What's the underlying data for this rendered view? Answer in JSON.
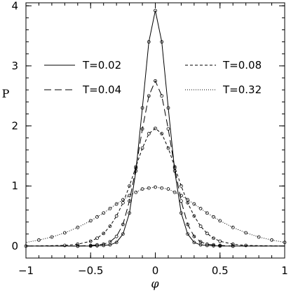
{
  "chart_data": {
    "type": "line",
    "title": "",
    "xlabel": "φ",
    "ylabel": "P",
    "xlim": [
      -1,
      1
    ],
    "ylim": [
      -0.2,
      4.05
    ],
    "x_ticks": [
      -1,
      -0.5,
      0,
      0.5,
      1
    ],
    "x_tick_labels": [
      "−1",
      "−0.5",
      "0",
      "0.5",
      "1"
    ],
    "y_ticks": [
      0,
      1,
      2,
      3,
      4
    ],
    "y_tick_labels": [
      "0",
      "1",
      "2",
      "3",
      "4"
    ],
    "grid": false,
    "legend_position": "inside, upper area, two columns",
    "series": [
      {
        "name": "T=0.02",
        "style": "solid",
        "x": [
          -0.6,
          -0.5,
          -0.4,
          -0.35,
          -0.3,
          -0.25,
          -0.2,
          -0.15,
          -0.1,
          -0.05,
          0,
          0.05,
          0.1,
          0.15,
          0.2,
          0.25,
          0.3,
          0.35,
          0.4,
          0.5,
          0.6
        ],
        "y": [
          0,
          0,
          0.01,
          0.02,
          0.06,
          0.2,
          0.55,
          1.25,
          2.3,
          3.4,
          3.92,
          3.4,
          2.3,
          1.25,
          0.55,
          0.2,
          0.06,
          0.02,
          0.01,
          0,
          0
        ]
      },
      {
        "name": "T=0.04",
        "style": "long-dash",
        "x": [
          -0.6,
          -0.5,
          -0.4,
          -0.35,
          -0.3,
          -0.25,
          -0.2,
          -0.15,
          -0.1,
          -0.05,
          0,
          0.05,
          0.1,
          0.15,
          0.2,
          0.25,
          0.3,
          0.35,
          0.4,
          0.5,
          0.6
        ],
        "y": [
          0,
          0.01,
          0.03,
          0.07,
          0.16,
          0.36,
          0.75,
          1.3,
          1.95,
          2.5,
          2.75,
          2.5,
          1.95,
          1.3,
          0.75,
          0.36,
          0.16,
          0.07,
          0.03,
          0.01,
          0
        ]
      },
      {
        "name": "T=0.08",
        "style": "short-dash",
        "x": [
          -0.7,
          -0.6,
          -0.5,
          -0.45,
          -0.4,
          -0.35,
          -0.3,
          -0.25,
          -0.2,
          -0.15,
          -0.1,
          -0.05,
          0,
          0.05,
          0.1,
          0.15,
          0.2,
          0.25,
          0.3,
          0.35,
          0.4,
          0.45,
          0.5,
          0.6,
          0.7
        ],
        "y": [
          0.01,
          0.03,
          0.08,
          0.13,
          0.21,
          0.33,
          0.5,
          0.72,
          1.0,
          1.32,
          1.63,
          1.87,
          1.96,
          1.87,
          1.63,
          1.32,
          1.0,
          0.72,
          0.5,
          0.33,
          0.21,
          0.13,
          0.08,
          0.03,
          0.01
        ]
      },
      {
        "name": "T=0.32",
        "style": "dotted",
        "x": [
          -1,
          -0.9,
          -0.8,
          -0.7,
          -0.6,
          -0.5,
          -0.4,
          -0.3,
          -0.2,
          -0.1,
          0,
          0.1,
          0.2,
          0.3,
          0.4,
          0.5,
          0.6,
          0.7,
          0.8,
          0.9,
          1
        ],
        "y": [
          0.06,
          0.1,
          0.15,
          0.22,
          0.31,
          0.42,
          0.55,
          0.7,
          0.84,
          0.95,
          0.98,
          0.95,
          0.84,
          0.7,
          0.55,
          0.42,
          0.31,
          0.22,
          0.15,
          0.1,
          0.06
        ]
      }
    ],
    "markers": {
      "symbol": "open-circle",
      "x": [
        -1,
        -0.9,
        -0.8,
        -0.7,
        -0.6,
        -0.5,
        -0.45,
        -0.4,
        -0.35,
        -0.3,
        -0.25,
        -0.2,
        -0.15,
        -0.1,
        -0.05,
        0,
        0.05,
        0.1,
        0.15,
        0.2,
        0.25,
        0.3,
        0.35,
        0.4,
        0.45,
        0.5,
        0.6,
        0.7,
        0.8,
        0.9,
        1
      ]
    }
  }
}
